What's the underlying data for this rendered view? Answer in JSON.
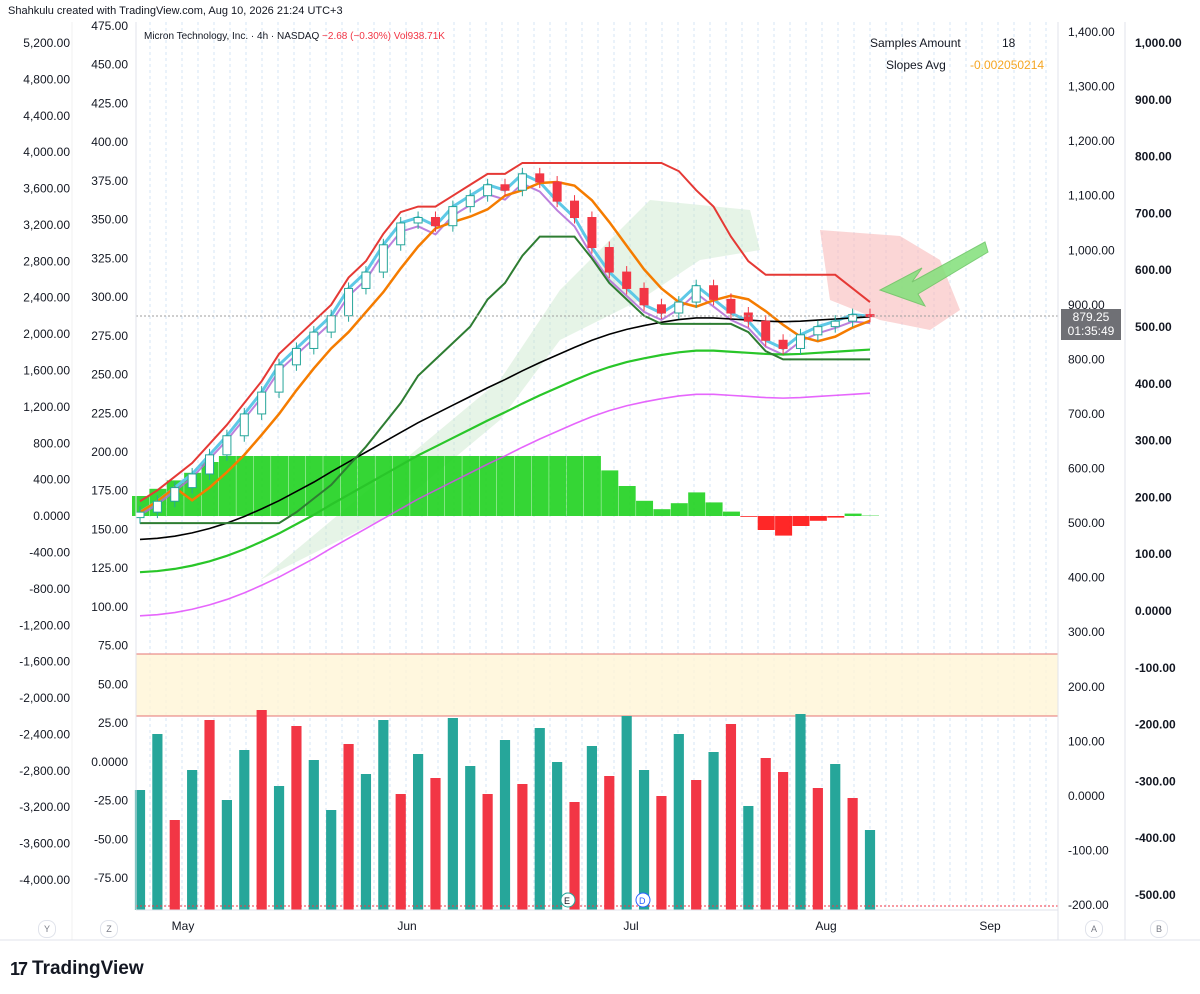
{
  "header": {
    "credit": "Shahkulu created with TradingView.com, Aug 10, 2026 21:24 UTC+3"
  },
  "legend": {
    "symbol": "Micron Technology, Inc. · 4h · NASDAQ",
    "change": "−2.68 (−0.30%)",
    "vol_label": "Vol",
    "vol_value": "938.71K"
  },
  "info_panel": {
    "samples_label": "Samples Amount",
    "samples_value": "18",
    "slopes_label": "Slopes Avg",
    "slopes_value": "-0.002050214"
  },
  "price_badge": {
    "price": "879.25",
    "countdown": "01:35:49"
  },
  "footer": {
    "brand": "TradingView",
    "logo_text": "17"
  },
  "corner_buttons": {
    "y": "Y",
    "z": "Z",
    "a": "A",
    "b": "B"
  },
  "colors": {
    "up": "#26a69a",
    "down": "#f23645",
    "buy_arrow": "#82e07a"
  },
  "chart_data": {
    "type": "line",
    "title": "Micron Technology, Inc. · 4h · NASDAQ",
    "time_axis": [
      "May",
      "Jun",
      "Jul",
      "Aug",
      "Sep"
    ],
    "axes": {
      "far_left": [
        "5,200.00",
        "4,800.00",
        "4,400.00",
        "4,000.00",
        "3,600.00",
        "3,200.00",
        "2,800.00",
        "2,400.00",
        "2,000.00",
        "1,600.00",
        "1,200.00",
        "800.00",
        "400.00",
        "0.0000",
        "-400.00",
        "-800.00",
        "-1,200.00",
        "-1,600.00",
        "-2,000.00",
        "-2,400.00",
        "-2,800.00",
        "-3,200.00",
        "-3,600.00",
        "-4,000.00"
      ],
      "inner_left": [
        "475.00",
        "450.00",
        "425.00",
        "400.00",
        "375.00",
        "350.00",
        "325.00",
        "300.00",
        "275.00",
        "250.00",
        "225.00",
        "200.00",
        "175.00",
        "150.00",
        "125.00",
        "100.00",
        "75.00",
        "50.00",
        "25.00",
        "0.0000",
        "-25.00",
        "-50.00",
        "-75.00"
      ],
      "price_right": [
        "1,400.00",
        "1,300.00",
        "1,200.00",
        "1,100.00",
        "1,000.00",
        "900.00",
        "800.00",
        "700.00",
        "600.00",
        "500.00",
        "400.00",
        "300.00",
        "200.00",
        "100.00",
        "0.0000",
        "-100.00",
        "-200.00"
      ],
      "far_right": [
        "1,000.00",
        "900.00",
        "800.00",
        "700.00",
        "600.00",
        "500.00",
        "400.00",
        "300.00",
        "200.00",
        "100.00",
        "0.0000",
        "-100.00",
        "-200.00",
        "-300.00",
        "-400.00",
        "-500.00"
      ]
    },
    "price_series": {
      "name": "close",
      "values": [
        520,
        540,
        565,
        590,
        625,
        660,
        700,
        740,
        790,
        820,
        850,
        880,
        930,
        960,
        1010,
        1050,
        1060,
        1045,
        1080,
        1100,
        1120,
        1110,
        1140,
        1125,
        1090,
        1060,
        1005,
        960,
        930,
        900,
        885,
        905,
        935,
        910,
        885,
        870,
        835,
        820,
        845,
        860,
        870,
        882,
        879
      ]
    },
    "sma_long": [
      470,
      472,
      476,
      482,
      490,
      500,
      512,
      526,
      541,
      558,
      575,
      594,
      612,
      630,
      648,
      666,
      684,
      700,
      716,
      732,
      748,
      763,
      779,
      794,
      808,
      822,
      835,
      846,
      855,
      862,
      868,
      873,
      876,
      876,
      874,
      872,
      870,
      869,
      870,
      872,
      874,
      876,
      878
    ],
    "volume": [
      60,
      88,
      45,
      70,
      95,
      55,
      80,
      100,
      62,
      92,
      75,
      50,
      83,
      68,
      95,
      58,
      78,
      66,
      96,
      72,
      58,
      85,
      63,
      91,
      74,
      54,
      82,
      67,
      97,
      70,
      57,
      88,
      65,
      79,
      93,
      52,
      76,
      69,
      98,
      61,
      73,
      56,
      40
    ],
    "volume_up": [
      true,
      true,
      false,
      true,
      false,
      true,
      true,
      false,
      true,
      false,
      true,
      true,
      false,
      true,
      true,
      false,
      true,
      false,
      true,
      true,
      false,
      true,
      false,
      true,
      true,
      false,
      true,
      false,
      true,
      true,
      false,
      true,
      false,
      true,
      false,
      true,
      false,
      false,
      true,
      false,
      true,
      false,
      true
    ]
  }
}
